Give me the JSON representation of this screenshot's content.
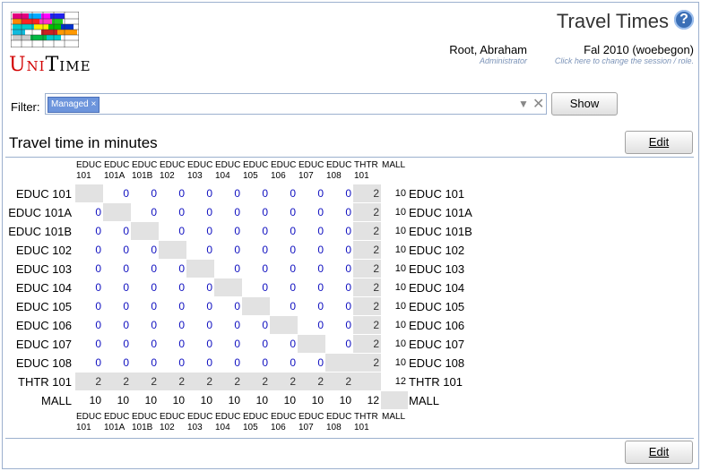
{
  "header": {
    "title": "Travel Times",
    "help": "?",
    "brand": {
      "u": "U",
      "ni": "NI",
      "t": "T",
      "ime": "IME"
    },
    "user": {
      "name": "Root, Abraham",
      "role": "Administrator"
    },
    "session": {
      "name": "Fal 2010 (woebegon)",
      "hint": "Click here to change the session / role."
    }
  },
  "filter": {
    "label": "Filter:",
    "chip": "Managed",
    "chip_remove": "×",
    "arrow": "▼",
    "clear": "✕",
    "button": "Show"
  },
  "section": {
    "title": "Travel time in minutes",
    "edit_label": "Edit"
  },
  "rooms": [
    "EDUC 101",
    "EDUC 101A",
    "EDUC 101B",
    "EDUC 102",
    "EDUC 103",
    "EDUC 104",
    "EDUC 105",
    "EDUC 106",
    "EDUC 107",
    "EDUC 108",
    "THTR 101",
    "MALL"
  ],
  "col_headers": [
    [
      "EDUC",
      "101"
    ],
    [
      "EDUC",
      "101A"
    ],
    [
      "EDUC",
      "101B"
    ],
    [
      "EDUC",
      "102"
    ],
    [
      "EDUC",
      "103"
    ],
    [
      "EDUC",
      "104"
    ],
    [
      "EDUC",
      "105"
    ],
    [
      "EDUC",
      "106"
    ],
    [
      "EDUC",
      "107"
    ],
    [
      "EDUC",
      "108"
    ],
    [
      "THTR",
      "101"
    ],
    [
      "MALL",
      ""
    ]
  ],
  "matrix": [
    [
      null,
      0,
      0,
      0,
      0,
      0,
      0,
      0,
      0,
      0,
      2,
      10
    ],
    [
      0,
      null,
      0,
      0,
      0,
      0,
      0,
      0,
      0,
      0,
      2,
      10
    ],
    [
      0,
      0,
      null,
      0,
      0,
      0,
      0,
      0,
      0,
      0,
      2,
      10
    ],
    [
      0,
      0,
      0,
      null,
      0,
      0,
      0,
      0,
      0,
      0,
      2,
      10
    ],
    [
      0,
      0,
      0,
      0,
      null,
      0,
      0,
      0,
      0,
      0,
      2,
      10
    ],
    [
      0,
      0,
      0,
      0,
      0,
      null,
      0,
      0,
      0,
      0,
      2,
      10
    ],
    [
      0,
      0,
      0,
      0,
      0,
      0,
      null,
      0,
      0,
      0,
      2,
      10
    ],
    [
      0,
      0,
      0,
      0,
      0,
      0,
      0,
      null,
      0,
      0,
      2,
      10
    ],
    [
      0,
      0,
      0,
      0,
      0,
      0,
      0,
      0,
      null,
      0,
      2,
      10
    ],
    [
      0,
      0,
      0,
      0,
      0,
      0,
      0,
      0,
      0,
      null,
      2,
      10
    ],
    [
      2,
      2,
      2,
      2,
      2,
      2,
      2,
      2,
      2,
      2,
      null,
      12
    ],
    [
      10,
      10,
      10,
      10,
      10,
      10,
      10,
      10,
      10,
      10,
      12,
      null
    ]
  ],
  "colors": {
    "accent": "#1010c0",
    "border": "#9cb0ce",
    "diag": "#e2e2e2",
    "chip": "#6d95dc"
  }
}
